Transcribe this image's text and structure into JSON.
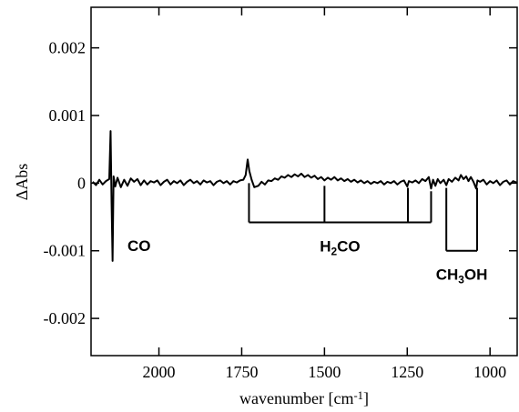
{
  "chart_data": {
    "type": "line",
    "y_label": "ΔAbs",
    "x_label_parts": [
      {
        "text": "wavenumber [cm"
      },
      {
        "text": "-1",
        "sup": true
      },
      {
        "text": "]"
      }
    ],
    "xlim": [
      2205,
      918
    ],
    "xticks": [
      2000,
      1750,
      1500,
      1250,
      1000
    ],
    "ylim": [
      -0.00255,
      0.0026
    ],
    "yticks": [
      0.002,
      0.001,
      0,
      -0.001,
      -0.002
    ],
    "color": "#000000",
    "x": [
      2200,
      2190,
      2180,
      2170,
      2160,
      2150,
      2146,
      2143,
      2140,
      2137,
      2132,
      2125,
      2115,
      2105,
      2095,
      2085,
      2075,
      2065,
      2055,
      2045,
      2035,
      2025,
      2015,
      2005,
      1995,
      1985,
      1975,
      1965,
      1955,
      1945,
      1935,
      1925,
      1915,
      1905,
      1895,
      1885,
      1875,
      1865,
      1855,
      1845,
      1835,
      1825,
      1815,
      1805,
      1795,
      1785,
      1775,
      1765,
      1755,
      1745,
      1738,
      1732,
      1727,
      1720,
      1712,
      1700,
      1690,
      1680,
      1670,
      1660,
      1650,
      1640,
      1630,
      1620,
      1610,
      1600,
      1590,
      1580,
      1570,
      1560,
      1550,
      1540,
      1530,
      1520,
      1510,
      1500,
      1490,
      1480,
      1470,
      1460,
      1450,
      1440,
      1430,
      1420,
      1410,
      1400,
      1390,
      1380,
      1370,
      1360,
      1350,
      1340,
      1330,
      1320,
      1310,
      1300,
      1290,
      1280,
      1270,
      1260,
      1250,
      1245,
      1235,
      1225,
      1215,
      1205,
      1195,
      1185,
      1178,
      1172,
      1165,
      1158,
      1150,
      1140,
      1132,
      1125,
      1115,
      1105,
      1095,
      1088,
      1080,
      1072,
      1065,
      1058,
      1050,
      1042,
      1038,
      1030,
      1020,
      1010,
      1000,
      990,
      980,
      970,
      960,
      950,
      940,
      930,
      920
    ],
    "values": [
      2e-05,
      -3e-05,
      5e-05,
      -2e-05,
      3e-05,
      6e-05,
      0.00077,
      -0.0003,
      -0.00115,
      0.0001,
      -5e-05,
      8e-05,
      -6e-05,
      5e-05,
      -4e-05,
      7e-05,
      2e-05,
      6e-05,
      -3e-05,
      4e-05,
      -2e-05,
      3e-05,
      1e-05,
      4e-05,
      -3e-05,
      2e-05,
      5e-05,
      -2e-05,
      3e-05,
      0,
      4e-05,
      -3e-05,
      2e-05,
      5e-05,
      0,
      3e-05,
      -2e-05,
      4e-05,
      1e-05,
      3e-05,
      -3e-05,
      2e-05,
      4e-05,
      0,
      3e-05,
      -2e-05,
      3e-05,
      1e-05,
      4e-05,
      5e-05,
      0.00012,
      0.00035,
      0.00018,
      5e-05,
      -6e-05,
      -4e-05,
      2e-05,
      -2e-05,
      4e-05,
      3e-05,
      7e-05,
      5e-05,
      0.0001,
      8e-05,
      0.00012,
      9e-05,
      0.00013,
      0.0001,
      0.00014,
      9e-05,
      0.00012,
      8e-05,
      0.00011,
      6e-05,
      9e-05,
      4e-05,
      8e-05,
      5e-05,
      9e-05,
      4e-05,
      7e-05,
      3e-05,
      6e-05,
      2e-05,
      5e-05,
      1e-05,
      4e-05,
      0,
      3e-05,
      -1e-05,
      2e-05,
      0,
      3e-05,
      -2e-05,
      2e-05,
      0,
      3e-05,
      -2e-05,
      2e-05,
      4e-05,
      -5e-05,
      3e-05,
      1e-05,
      4e-05,
      0,
      6e-05,
      3e-05,
      9e-05,
      -8e-05,
      5e-05,
      -4e-05,
      6e-05,
      0,
      5e-05,
      -3e-05,
      6e-05,
      2e-05,
      8e-05,
      4e-05,
      0.00012,
      6e-05,
      0.0001,
      3e-05,
      9e-05,
      2e-05,
      -8e-05,
      4e-05,
      2e-05,
      5e-05,
      -2e-05,
      3e-05,
      0,
      4e-05,
      -3e-05,
      2e-05,
      4e-05,
      -2e-05,
      3e-05,
      1e-05
    ],
    "co_label": "CO",
    "brackets": [
      {
        "label_parts": [
          {
            "text": "H"
          },
          {
            "text": "2",
            "sub": true
          },
          {
            "text": "CO"
          }
        ],
        "y": -0.00058,
        "ticks": [
          {
            "x": 1728,
            "top": 0
          },
          {
            "x": 1500,
            "top": -4e-05
          },
          {
            "x": 1248,
            "top": -7e-05
          },
          {
            "x": 1178,
            "top": -0.00012
          }
        ]
      },
      {
        "label_parts": [
          {
            "text": "CH"
          },
          {
            "text": "3",
            "sub": true
          },
          {
            "text": "OH"
          }
        ],
        "y": -0.001,
        "ticks": [
          {
            "x": 1132,
            "top": -7e-05
          },
          {
            "x": 1039,
            "top": -7e-05
          }
        ]
      }
    ]
  }
}
